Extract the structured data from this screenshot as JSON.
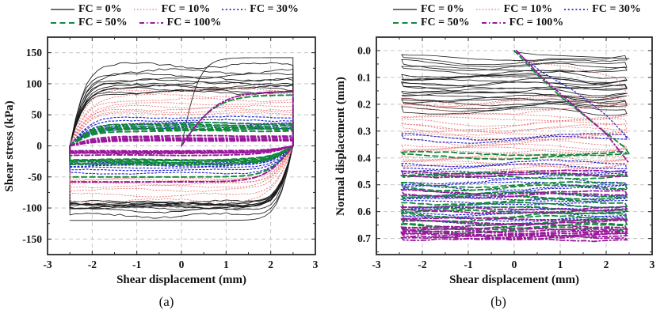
{
  "captions": {
    "a": "(a)",
    "b": "(b)"
  },
  "legend": {
    "entries": [
      {
        "label": "FC = 0%",
        "color": "#1a1a1a",
        "dash": "",
        "width": 1.2
      },
      {
        "label": "FC = 10%",
        "color": "#ef8585",
        "dash": "1.5 2.4",
        "width": 1.5
      },
      {
        "label": "FC = 30%",
        "color": "#2727cb",
        "dash": "2 2.8",
        "width": 1.7
      },
      {
        "label": "FC = 50%",
        "color": "#11893a",
        "dash": "7 4.5",
        "width": 2.1
      },
      {
        "label": "FC = 100%",
        "color": "#99189c",
        "dash": "6 3 1.5 3",
        "width": 2.1
      }
    ],
    "rows": [
      [
        0,
        1,
        2
      ],
      [
        3,
        4
      ]
    ]
  },
  "chart_data": [
    {
      "id": "a",
      "type": "line",
      "xlabel": "Shear displacement (mm)",
      "ylabel": "Shear stress (kPa)",
      "xlim": [
        -3,
        3
      ],
      "ylim_top_bottom": [
        175,
        -175
      ],
      "xtick_vals": [
        -3,
        -2,
        -1,
        0,
        1,
        2,
        3
      ],
      "xtick_labels": [
        "-3",
        "-2",
        "-1",
        "0",
        "1",
        "2",
        "3"
      ],
      "ytick_vals": [
        150,
        100,
        50,
        0,
        -50,
        -100,
        -150
      ],
      "ytick_labels": [
        "150",
        "100",
        "50",
        "0",
        "-50",
        "-100",
        "-150"
      ],
      "grid": "dashed",
      "displacement_amplitude_mm": 2.5,
      "series": [
        {
          "name": "FC = 0%",
          "color": "#1a1a1a",
          "dash": "",
          "width": 0.85,
          "k": 2.8,
          "initial": {
            "peak": 142,
            "k": 2.5,
            "return": -120
          },
          "cycles": [
            [
              130,
              -112
            ],
            [
              120,
              -104
            ],
            [
              113,
              -100
            ],
            [
              108,
              -98
            ],
            [
              104,
              -97
            ],
            [
              100,
              -96
            ],
            [
              97,
              -95
            ],
            [
              94,
              -94
            ],
            [
              91,
              -93
            ],
            [
              88,
              -92
            ],
            [
              86,
              -91
            ]
          ]
        },
        {
          "name": "FC = 10%",
          "color": "#e87777",
          "dash": "1.3 2.4",
          "width": 0.9,
          "k": 2.2,
          "cycles": [
            [
              90,
              -88
            ],
            [
              81,
              -79
            ],
            [
              74,
              -71
            ],
            [
              68,
              -65
            ],
            [
              63,
              -61
            ],
            [
              59,
              -58
            ],
            [
              55,
              -55
            ],
            [
              52,
              -52
            ]
          ]
        },
        {
          "name": "FC = 30%",
          "color": "#2727cb",
          "dash": "2 2.6",
          "width": 1.2,
          "k": 2.0,
          "cycles": [
            [
              46,
              -44
            ],
            [
              41,
              -39
            ],
            [
              37,
              -35
            ],
            [
              34,
              -32
            ],
            [
              31,
              -30
            ],
            [
              29,
              -28
            ],
            [
              27,
              -27
            ]
          ]
        },
        {
          "name": "FC = 50%",
          "color": "#11893a",
          "dash": "6.5 4",
          "width": 1.9,
          "k": 1.8,
          "initial": {
            "peak": 82,
            "k": 1.3,
            "return": -50
          },
          "cycles": [
            [
              36,
              -30
            ],
            [
              33,
              -28
            ],
            [
              30,
              -26
            ],
            [
              28,
              -24
            ],
            [
              26,
              -23
            ],
            [
              24,
              -22
            ]
          ]
        },
        {
          "name": "FC = 100%",
          "color": "#99189c",
          "dash": "6 3 1.5 3",
          "width": 1.9,
          "k": 1.6,
          "initial": {
            "peak": 88,
            "k": 1.2,
            "return": -58
          },
          "cycles": [
            [
              16,
              -15
            ],
            [
              13,
              -12
            ],
            [
              11,
              -11
            ],
            [
              10,
              -10
            ],
            [
              9,
              -9
            ],
            [
              8,
              -8
            ]
          ]
        }
      ]
    },
    {
      "id": "b",
      "type": "line",
      "xlabel": "Shear displacement (mm)",
      "ylabel": "Normal displacement (mm)",
      "xlim": [
        -3,
        3
      ],
      "ylim_top_bottom": [
        -0.05,
        0.76
      ],
      "xtick_vals": [
        -3,
        -2,
        -1,
        0,
        1,
        2,
        3
      ],
      "xtick_labels": [
        "-3",
        "-2",
        "-1",
        "0",
        "1",
        "2",
        "3"
      ],
      "ytick_vals": [
        0.0,
        0.1,
        0.2,
        0.3,
        0.4,
        0.5,
        0.6,
        0.7
      ],
      "ytick_labels": [
        "0.0",
        "0.1",
        "0.2",
        "0.3",
        "0.4",
        "0.5",
        "0.6",
        "0.7"
      ],
      "grid": "dashed",
      "displacement_amplitude_mm": 2.5,
      "series": [
        {
          "name": "FC = 0%",
          "color": "#1a1a1a",
          "dash": "",
          "width": 0.8,
          "descent": [
            [
              0,
              0.005
            ],
            [
              0.5,
              0.015
            ],
            [
              2.5,
              0.03
            ]
          ],
          "band": [
            0.025,
            0.045,
            0.065,
            0.085,
            0.1,
            0.115,
            0.13,
            0.145,
            0.16,
            0.175,
            0.19,
            0.21
          ],
          "wave": 0.01,
          "sag": [
            0.013,
            0.018
          ]
        },
        {
          "name": "FC = 10%",
          "color": "#e87777",
          "dash": "1.3 2.4",
          "width": 0.9,
          "descent": [
            [
              0.1,
              0.04
            ],
            [
              1.2,
              0.06
            ],
            [
              2.2,
              0.1
            ],
            [
              2.5,
              0.17
            ]
          ],
          "band": [
            0.18,
            0.21,
            0.24,
            0.265,
            0.285,
            0.305,
            0.325,
            0.345,
            0.365,
            0.385,
            0.405,
            0.425,
            0.445
          ],
          "wave": 0.011,
          "sag": [
            0.013,
            0.007
          ]
        },
        {
          "name": "FC = 30%",
          "color": "#2727cb",
          "dash": "2 2.6",
          "width": 1.2,
          "descent": [
            [
              0,
              0
            ],
            [
              0.6,
              0.08
            ],
            [
              1.3,
              0.15
            ],
            [
              2.0,
              0.24
            ],
            [
              2.5,
              0.33
            ]
          ],
          "band": [
            0.32,
            0.42,
            0.455,
            0.485,
            0.51,
            0.535,
            0.555,
            0.575,
            0.6,
            0.625
          ],
          "wave": 0.009,
          "sag": [
            0.01,
            0.006
          ]
        },
        {
          "name": "FC = 50%",
          "color": "#11893a",
          "dash": "6.5 4",
          "width": 1.8,
          "descent": [
            [
              0,
              0
            ],
            [
              0.5,
              0.09
            ],
            [
              1.0,
              0.17
            ],
            [
              1.8,
              0.28
            ],
            [
              2.4,
              0.36
            ],
            [
              2.5,
              0.385
            ]
          ],
          "band": [
            0.385,
            0.46,
            0.5,
            0.535,
            0.565,
            0.59,
            0.615,
            0.64,
            0.658
          ],
          "wave": 0.008,
          "sag": [
            0.008,
            0.005
          ]
        },
        {
          "name": "FC = 100%",
          "color": "#99189c",
          "dash": "6 3 1.5 3",
          "width": 1.8,
          "descent": [
            [
              0.05,
              0
            ],
            [
              0.6,
              0.1
            ],
            [
              1.2,
              0.19
            ],
            [
              2.0,
              0.31
            ],
            [
              2.5,
              0.42
            ]
          ],
          "band": [
            0.455,
            0.53,
            0.59,
            0.63,
            0.655,
            0.67,
            0.68,
            0.688,
            0.694
          ],
          "wave": 0.006,
          "sag": [
            0.006,
            0.004
          ]
        }
      ]
    }
  ]
}
